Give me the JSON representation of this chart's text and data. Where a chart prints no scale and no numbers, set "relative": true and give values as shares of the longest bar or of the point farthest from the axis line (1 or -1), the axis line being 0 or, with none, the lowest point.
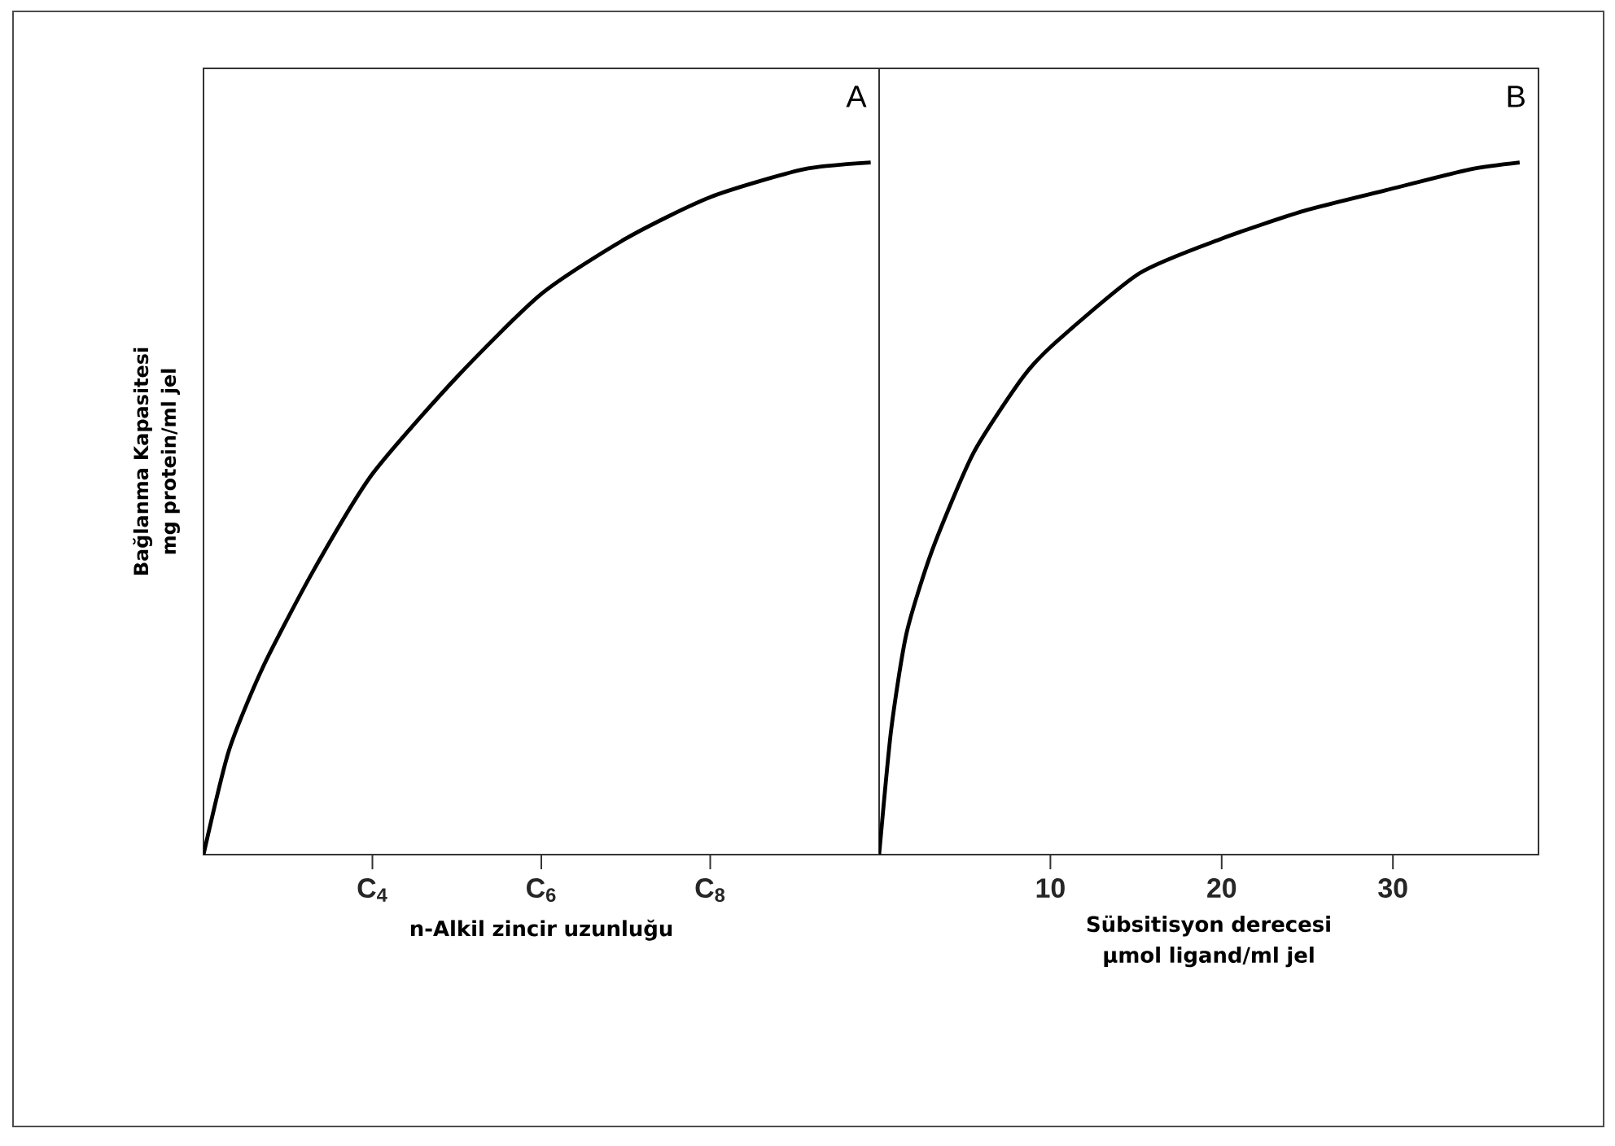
{
  "chart_data": [
    {
      "type": "line",
      "relative": true,
      "tick_labels": "x",
      "ylabel": "Bağlanma Kapasitesi mg protein/ml jel",
      "xlabel": "n-Alkil zincir uzunluğu",
      "annotations": [
        "A"
      ],
      "xlim": [
        2,
        10
      ],
      "xticks": [
        {
          "value": 4,
          "label": "C$_{4}$"
        },
        {
          "value": 6,
          "label": "C$_{6}$"
        },
        {
          "value": 8,
          "label": "C$_{8}$"
        }
      ],
      "series": [
        {
          "color": "#000000",
          "x": [
            2,
            2.3,
            2.7,
            3.3,
            4,
            5,
            6,
            7,
            8,
            9.1,
            9.9
          ],
          "values": [
            0,
            0.15,
            0.27,
            0.41,
            0.55,
            0.69,
            0.81,
            0.89,
            0.95,
            0.99,
            1
          ]
        }
      ]
    },
    {
      "type": "line",
      "relative": true,
      "tick_labels": "x",
      "xlabel": "Sübsitisyon derecesi µmol ligand/ml jel",
      "annotations": [
        "B"
      ],
      "xlim": [
        0,
        38.5
      ],
      "xticks": [
        10,
        20,
        30
      ],
      "series": [
        {
          "color": "#000000",
          "x": [
            0,
            0.7,
            1.6,
            3.1,
            5.5,
            8.4,
            10.3,
            15.2,
            20,
            24.8,
            29.6,
            34.5,
            37.4
          ],
          "values": [
            0,
            0.18,
            0.32,
            0.44,
            0.58,
            0.69,
            0.74,
            0.84,
            0.89,
            0.93,
            0.96,
            0.99,
            1
          ]
        }
      ]
    }
  ]
}
